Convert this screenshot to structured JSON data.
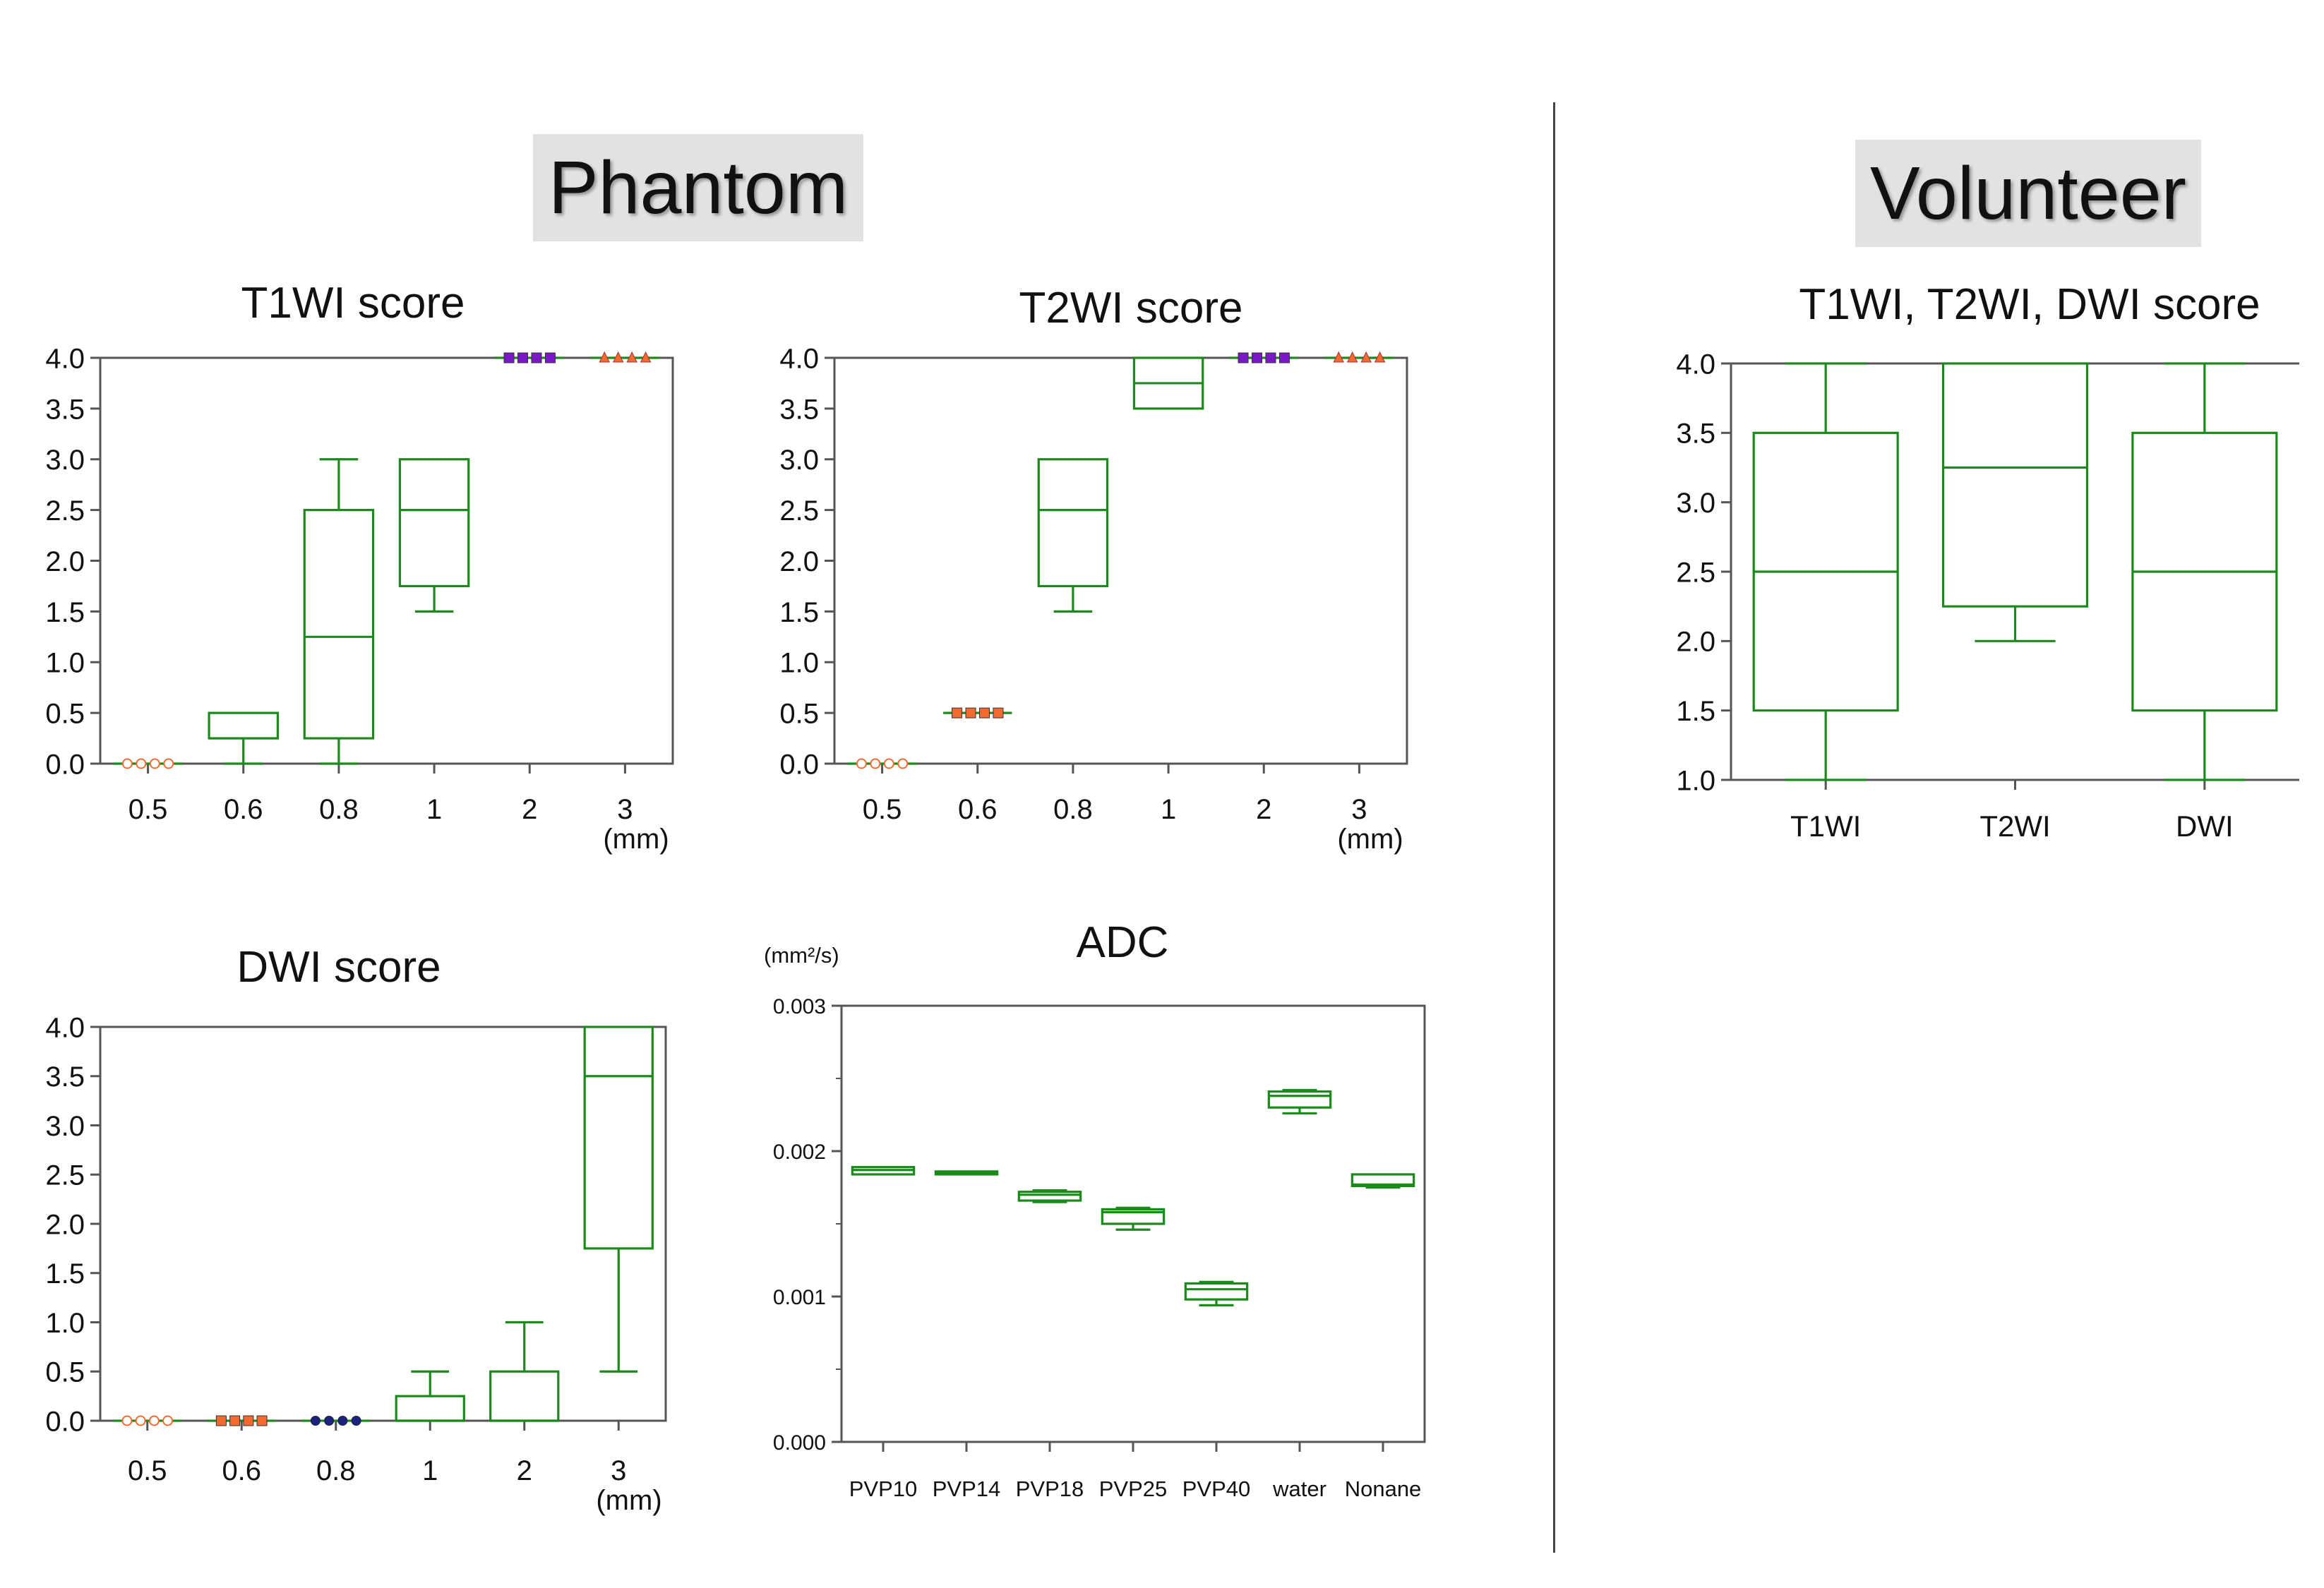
{
  "sections": {
    "phantom": "Phantom",
    "volunteer": "Volunteer"
  },
  "colors": {
    "box": "#1a8a1a",
    "frame": "#555555",
    "orange": "#f26a30",
    "purple": "#7a18c8",
    "navy": "#1a237e"
  },
  "chart_data": [
    {
      "id": "t1wi",
      "type": "box",
      "title": "T1WI score",
      "unit_label": "(mm)",
      "ylim": [
        0,
        4
      ],
      "yticks": [
        "0.0",
        "0.5",
        "1.0",
        "1.5",
        "2.0",
        "2.5",
        "3.0",
        "3.5",
        "4.0"
      ],
      "categories": [
        "0.5",
        "0.6",
        "0.8",
        "1",
        "2",
        "3"
      ],
      "boxes": [
        {
          "min": 0,
          "q1": 0,
          "median": 0,
          "q3": 0,
          "max": 0,
          "markers": "orange-circle"
        },
        {
          "min": 0,
          "q1": 0.25,
          "median": 0.25,
          "q3": 0.5,
          "max": 0.5
        },
        {
          "min": 0,
          "q1": 0.25,
          "median": 1.25,
          "q3": 2.5,
          "max": 3.0
        },
        {
          "min": 1.5,
          "q1": 1.75,
          "median": 2.5,
          "q3": 3.0,
          "max": 3.0
        },
        {
          "min": 4,
          "q1": 4,
          "median": 4,
          "q3": 4,
          "max": 4,
          "markers": "purple-square"
        },
        {
          "min": 4,
          "q1": 4,
          "median": 4,
          "q3": 4,
          "max": 4,
          "markers": "orange-triangle"
        }
      ]
    },
    {
      "id": "t2wi",
      "type": "box",
      "title": "T2WI score",
      "unit_label": "(mm)",
      "ylim": [
        0,
        4
      ],
      "yticks": [
        "0.0",
        "0.5",
        "1.0",
        "1.5",
        "2.0",
        "2.5",
        "3.0",
        "3.5",
        "4.0"
      ],
      "categories": [
        "0.5",
        "0.6",
        "0.8",
        "1",
        "2",
        "3"
      ],
      "boxes": [
        {
          "min": 0,
          "q1": 0,
          "median": 0,
          "q3": 0,
          "max": 0,
          "markers": "orange-circle"
        },
        {
          "min": 0.5,
          "q1": 0.5,
          "median": 0.5,
          "q3": 0.5,
          "max": 0.5,
          "markers": "orange-square"
        },
        {
          "min": 1.5,
          "q1": 1.75,
          "median": 2.5,
          "q3": 3.0,
          "max": 3.0
        },
        {
          "min": 3.5,
          "q1": 3.5,
          "median": 3.75,
          "q3": 4.0,
          "max": 4.0
        },
        {
          "min": 4,
          "q1": 4,
          "median": 4,
          "q3": 4,
          "max": 4,
          "markers": "purple-square"
        },
        {
          "min": 4,
          "q1": 4,
          "median": 4,
          "q3": 4,
          "max": 4,
          "markers": "orange-triangle"
        }
      ]
    },
    {
      "id": "dwi",
      "type": "box",
      "title": "DWI score",
      "unit_label": "(mm)",
      "ylim": [
        0,
        4
      ],
      "yticks": [
        "0.0",
        "0.5",
        "1.0",
        "1.5",
        "2.0",
        "2.5",
        "3.0",
        "3.5",
        "4.0"
      ],
      "categories": [
        "0.5",
        "0.6",
        "0.8",
        "1",
        "2",
        "3"
      ],
      "boxes": [
        {
          "min": 0,
          "q1": 0,
          "median": 0,
          "q3": 0,
          "max": 0,
          "markers": "orange-circle"
        },
        {
          "min": 0,
          "q1": 0,
          "median": 0,
          "q3": 0,
          "max": 0,
          "markers": "orange-square"
        },
        {
          "min": 0,
          "q1": 0,
          "median": 0,
          "q3": 0,
          "max": 0,
          "markers": "navy-diamond"
        },
        {
          "min": 0,
          "q1": 0,
          "median": 0,
          "q3": 0.25,
          "max": 0.5
        },
        {
          "min": 0,
          "q1": 0,
          "median": 0,
          "q3": 0.5,
          "max": 1.0
        },
        {
          "min": 0.5,
          "q1": 1.75,
          "median": 3.5,
          "q3": 4.0,
          "max": 4.0
        }
      ]
    },
    {
      "id": "adc",
      "type": "box",
      "title": "ADC",
      "ylabel": "(mm²/s)",
      "ylim": [
        0,
        0.003
      ],
      "yticks": [
        "0.000",
        "0.001",
        "0.002",
        "0.003"
      ],
      "categories": [
        "PVP10",
        "PVP14",
        "PVP18",
        "PVP25",
        "PVP40",
        "water",
        "Nonane"
      ],
      "boxes": [
        {
          "min": 0.00184,
          "q1": 0.00184,
          "median": 0.00187,
          "q3": 0.00189,
          "max": 0.00189
        },
        {
          "min": 0.00184,
          "q1": 0.00184,
          "median": 0.00185,
          "q3": 0.00186,
          "max": 0.00186
        },
        {
          "min": 0.00165,
          "q1": 0.00166,
          "median": 0.0017,
          "q3": 0.00172,
          "max": 0.00173
        },
        {
          "min": 0.00146,
          "q1": 0.0015,
          "median": 0.00158,
          "q3": 0.0016,
          "max": 0.00161
        },
        {
          "min": 0.00094,
          "q1": 0.00098,
          "median": 0.00105,
          "q3": 0.00109,
          "max": 0.0011
        },
        {
          "min": 0.00226,
          "q1": 0.0023,
          "median": 0.00238,
          "q3": 0.00241,
          "max": 0.00242
        },
        {
          "min": 0.00175,
          "q1": 0.00176,
          "median": 0.00177,
          "q3": 0.00184,
          "max": 0.00184
        }
      ]
    },
    {
      "id": "volunteer",
      "type": "box",
      "title": "T1WI, T2WI, DWI score",
      "ylim": [
        1,
        4
      ],
      "yticks": [
        "1.0",
        "1.5",
        "2.0",
        "2.5",
        "3.0",
        "3.5",
        "4.0"
      ],
      "categories": [
        "T1WI",
        "T2WI",
        "DWI"
      ],
      "boxes": [
        {
          "min": 1.0,
          "q1": 1.5,
          "median": 2.5,
          "q3": 3.5,
          "max": 4.0
        },
        {
          "min": 2.0,
          "q1": 2.25,
          "median": 3.25,
          "q3": 4.0,
          "max": 4.0
        },
        {
          "min": 1.0,
          "q1": 1.5,
          "median": 2.5,
          "q3": 3.5,
          "max": 4.0
        }
      ]
    }
  ]
}
